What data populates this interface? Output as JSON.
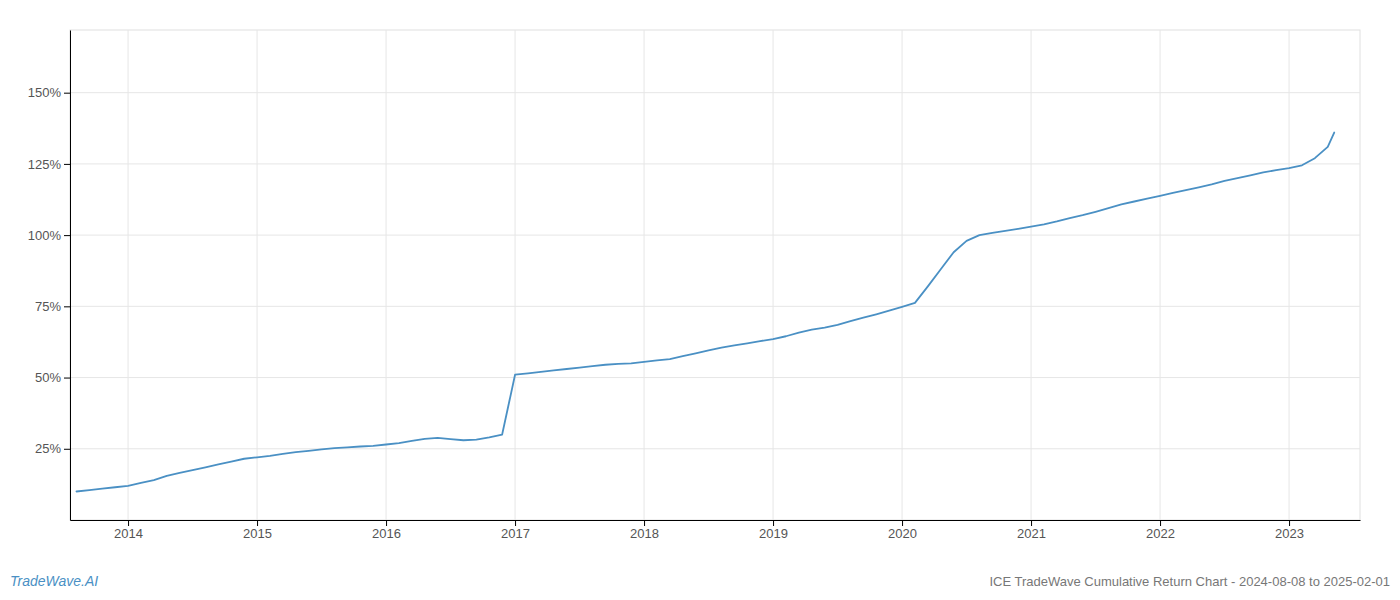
{
  "chart_data": {
    "type": "line",
    "title": "ICE TradeWave Cumulative Return Chart - 2024-08-08 to 2025-02-01",
    "annotations": [
      "TradeWave.AI"
    ],
    "color": "#4a90c4",
    "grid": true,
    "x": [
      2013.6,
      2013.7,
      2013.8,
      2013.9,
      2014.0,
      2014.1,
      2014.2,
      2014.3,
      2014.4,
      2014.5,
      2014.6,
      2014.7,
      2014.8,
      2014.9,
      2015.0,
      2015.1,
      2015.2,
      2015.3,
      2015.4,
      2015.5,
      2015.6,
      2015.7,
      2015.8,
      2015.9,
      2016.0,
      2016.1,
      2016.2,
      2016.3,
      2016.4,
      2016.5,
      2016.6,
      2016.7,
      2016.8,
      2016.9,
      2017.0,
      2017.1,
      2017.2,
      2017.3,
      2017.4,
      2017.5,
      2017.6,
      2017.7,
      2017.8,
      2017.9,
      2018.0,
      2018.1,
      2018.2,
      2018.3,
      2018.4,
      2018.5,
      2018.6,
      2018.7,
      2018.8,
      2018.9,
      2019.0,
      2019.1,
      2019.2,
      2019.3,
      2019.4,
      2019.5,
      2019.6,
      2019.7,
      2019.8,
      2019.9,
      2020.0,
      2020.1,
      2020.2,
      2020.3,
      2020.4,
      2020.5,
      2020.6,
      2020.7,
      2020.8,
      2020.9,
      2021.0,
      2021.1,
      2021.2,
      2021.3,
      2021.4,
      2021.5,
      2021.6,
      2021.7,
      2021.8,
      2021.9,
      2022.0,
      2022.1,
      2022.2,
      2022.3,
      2022.4,
      2022.5,
      2022.6,
      2022.7,
      2022.8,
      2022.9,
      2023.0,
      2023.1,
      2023.2,
      2023.3,
      2023.35
    ],
    "values": [
      0.1,
      0.105,
      0.11,
      0.115,
      0.12,
      0.13,
      0.14,
      0.155,
      0.165,
      0.175,
      0.185,
      0.195,
      0.205,
      0.215,
      0.22,
      0.225,
      0.232,
      0.238,
      0.243,
      0.248,
      0.252,
      0.255,
      0.258,
      0.26,
      0.265,
      0.27,
      0.278,
      0.285,
      0.288,
      0.284,
      0.28,
      0.282,
      0.29,
      0.3,
      0.51,
      0.515,
      0.52,
      0.525,
      0.53,
      0.535,
      0.54,
      0.545,
      0.548,
      0.55,
      0.555,
      0.56,
      0.565,
      0.575,
      0.585,
      0.595,
      0.605,
      0.613,
      0.62,
      0.628,
      0.635,
      0.645,
      0.658,
      0.668,
      0.675,
      0.685,
      0.698,
      0.71,
      0.722,
      0.735,
      0.748,
      0.762,
      0.82,
      0.88,
      0.94,
      0.98,
      1.0,
      1.008,
      1.015,
      1.022,
      1.03,
      1.038,
      1.048,
      1.06,
      1.07,
      1.082,
      1.095,
      1.108,
      1.118,
      1.128,
      1.138,
      1.148,
      1.158,
      1.168,
      1.178,
      1.19,
      1.2,
      1.21,
      1.22,
      1.228,
      1.235,
      1.245,
      1.27,
      1.31,
      1.36
    ],
    "xlim": [
      2013.55,
      2023.55
    ],
    "xticks": [
      2014,
      2015,
      2016,
      2017,
      2018,
      2019,
      2020,
      2021,
      2022,
      2023
    ],
    "ylim": [
      0.0,
      1.72
    ],
    "yticks": [
      {
        "value": 0.25,
        "label": "25%"
      },
      {
        "value": 0.5,
        "label": "50%"
      },
      {
        "value": 0.75,
        "label": "75%"
      },
      {
        "value": 1.0,
        "label": "100%"
      },
      {
        "value": 1.25,
        "label": "125%"
      },
      {
        "value": 1.5,
        "label": "150%"
      }
    ]
  }
}
